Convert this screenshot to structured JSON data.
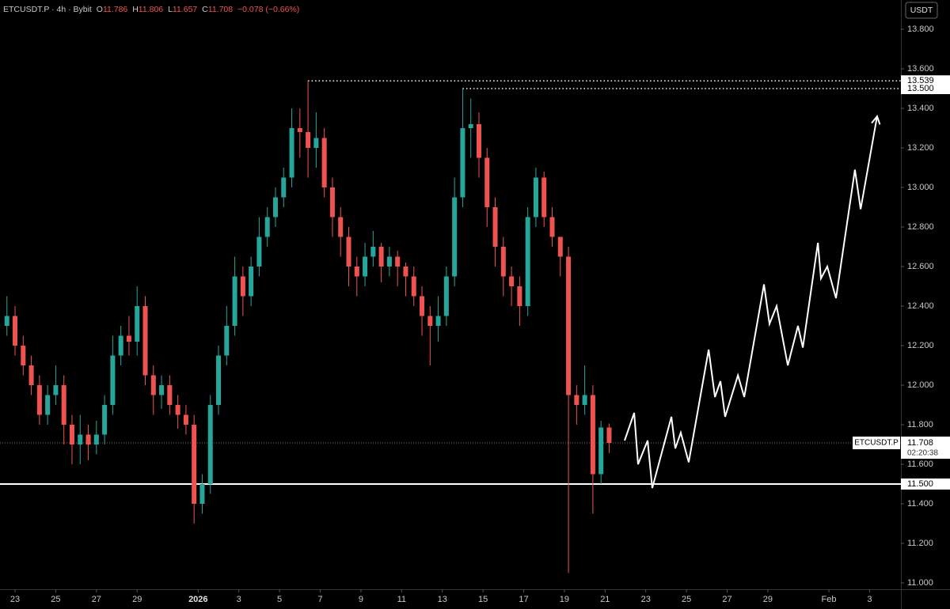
{
  "chart_data": {
    "type": "candlestick",
    "symbol_line": "ETCUSDT.P · 4h · Bybit",
    "ohlc_letters": [
      "O",
      "H",
      "L",
      "C"
    ],
    "change_label": "−0.078 (−0.66%)",
    "currency": "USDT",
    "symbol_tag": "ETCUSDT.P",
    "countdown": "02:20:38",
    "up_color": "#26a69a",
    "down_color": "#ef5350",
    "x": [
      -0.4,
      0,
      0.4,
      0.8,
      1.2,
      1.6,
      2,
      2.4,
      2.8,
      3.2,
      3.6,
      4,
      4.4,
      4.8,
      5.2,
      5.6,
      6,
      6.4,
      6.8,
      7.2,
      7.6,
      8,
      8.4,
      8.8,
      9.2,
      9.6,
      10,
      10.4,
      10.8,
      11.2,
      11.6,
      12,
      12.4,
      12.8,
      13.2,
      13.6,
      14,
      14.4,
      14.8,
      15.2,
      15.6,
      16,
      16.4,
      16.8,
      17.2,
      17.6,
      18,
      18.4,
      18.8,
      19.2,
      19.6,
      20,
      20.4,
      20.8,
      21.2,
      21.6,
      22,
      22.4,
      22.8,
      23.2,
      23.6,
      24,
      24.4,
      24.8,
      25.2,
      25.6,
      26,
      26.4,
      26.8,
      27.2,
      27.6,
      28,
      28.4,
      28.8,
      29.2
    ],
    "open": [
      12.3,
      12.35,
      12.2,
      12.1,
      12.0,
      11.85,
      11.95,
      12.0,
      11.8,
      11.7,
      11.75,
      11.7,
      11.75,
      11.9,
      12.15,
      12.25,
      12.22,
      12.4,
      12.05,
      11.95,
      12.0,
      11.9,
      11.85,
      11.8,
      11.4,
      11.5,
      11.9,
      12.15,
      12.3,
      12.55,
      12.45,
      12.6,
      12.75,
      12.85,
      12.95,
      13.05,
      13.3,
      13.28,
      13.2,
      13.25,
      13.0,
      12.85,
      12.75,
      12.6,
      12.55,
      12.65,
      12.7,
      12.6,
      12.65,
      12.6,
      12.55,
      12.45,
      12.35,
      12.3,
      12.35,
      12.55,
      12.95,
      13.3,
      13.32,
      13.15,
      12.9,
      12.7,
      12.55,
      12.5,
      12.4,
      12.85,
      13.05,
      12.85,
      12.75,
      12.65,
      11.95,
      11.9,
      11.95,
      11.55,
      11.786
    ],
    "high": [
      12.45,
      12.4,
      12.25,
      12.15,
      12.05,
      12.0,
      12.1,
      12.05,
      11.85,
      11.85,
      11.8,
      11.82,
      11.95,
      12.25,
      12.3,
      12.35,
      12.5,
      12.45,
      12.1,
      12.05,
      12.05,
      11.95,
      11.9,
      11.85,
      11.55,
      11.95,
      12.2,
      12.4,
      12.65,
      12.6,
      12.65,
      12.85,
      12.9,
      13.0,
      13.1,
      13.4,
      13.4,
      13.539,
      13.38,
      13.3,
      13.05,
      12.9,
      12.8,
      12.65,
      12.72,
      12.78,
      12.72,
      12.7,
      12.68,
      12.62,
      12.6,
      12.5,
      12.4,
      12.45,
      12.6,
      13.05,
      13.5,
      13.45,
      13.38,
      13.2,
      12.95,
      12.75,
      12.6,
      12.55,
      12.9,
      13.1,
      13.08,
      12.9,
      12.75,
      12.7,
      12.0,
      12.1,
      12.0,
      11.82,
      11.806
    ],
    "low": [
      12.25,
      12.15,
      12.05,
      11.95,
      11.8,
      11.8,
      11.9,
      11.7,
      11.6,
      11.6,
      11.62,
      11.65,
      11.7,
      11.85,
      12.1,
      12.15,
      12.15,
      12.0,
      11.85,
      11.88,
      11.85,
      11.78,
      11.75,
      11.3,
      11.35,
      11.45,
      11.85,
      12.1,
      12.25,
      12.35,
      12.4,
      12.55,
      12.7,
      12.8,
      12.9,
      13.0,
      13.15,
      13.05,
      13.1,
      12.95,
      12.75,
      12.65,
      12.5,
      12.45,
      12.5,
      12.6,
      12.52,
      12.55,
      12.5,
      12.45,
      12.4,
      12.25,
      12.1,
      12.22,
      12.3,
      12.5,
      12.9,
      13.15,
      13.05,
      12.8,
      12.6,
      12.45,
      12.4,
      12.3,
      12.35,
      12.8,
      12.8,
      12.7,
      12.55,
      11.05,
      11.8,
      11.85,
      11.35,
      11.5,
      11.657
    ],
    "close": [
      12.35,
      12.2,
      12.1,
      12.0,
      11.85,
      11.95,
      12.0,
      11.8,
      11.7,
      11.75,
      11.7,
      11.75,
      11.9,
      12.15,
      12.25,
      12.22,
      12.4,
      12.05,
      11.95,
      12.0,
      11.9,
      11.85,
      11.8,
      11.4,
      11.5,
      11.9,
      12.15,
      12.3,
      12.55,
      12.45,
      12.6,
      12.75,
      12.85,
      12.95,
      13.05,
      13.3,
      13.28,
      13.2,
      13.25,
      13.0,
      12.85,
      12.75,
      12.6,
      12.55,
      12.65,
      12.7,
      12.6,
      12.65,
      12.6,
      12.55,
      12.45,
      12.35,
      12.3,
      12.35,
      12.55,
      12.95,
      13.3,
      13.32,
      13.15,
      12.9,
      12.7,
      12.55,
      12.5,
      12.4,
      12.85,
      13.05,
      12.85,
      12.75,
      12.65,
      11.95,
      11.9,
      11.95,
      11.55,
      11.786,
      11.708
    ],
    "projection": {
      "color": "#ffffff",
      "x": [
        29.96,
        30.43,
        30.62,
        31.09,
        31.32,
        32.26,
        32.45,
        32.72,
        33.11,
        34.09,
        34.4,
        34.67,
        34.9,
        35.53,
        35.84,
        36.81,
        37.08,
        37.43,
        37.98,
        38.48,
        38.72,
        39.46,
        39.61,
        39.92,
        40.35,
        41.28,
        41.56,
        42.37
      ],
      "y": [
        11.72,
        11.86,
        11.6,
        11.72,
        11.48,
        11.84,
        11.68,
        11.76,
        11.61,
        12.18,
        11.94,
        12.02,
        11.84,
        12.05,
        11.94,
        12.51,
        12.31,
        12.4,
        12.1,
        12.3,
        12.19,
        12.72,
        12.54,
        12.6,
        12.44,
        13.09,
        12.89,
        13.36
      ]
    },
    "levels": [
      {
        "value": 13.539,
        "style": "dotted",
        "from": 14.4
      },
      {
        "value": 13.5,
        "label": "13.500",
        "style": "dotted",
        "from": 22.0
      },
      {
        "value": 11.5,
        "label": "11.500",
        "style": "solid"
      }
    ],
    "xlim": [
      -0.74,
      43.54
    ],
    "ylim": [
      10.968,
      13.948
    ],
    "xticks": [
      {
        "value": 0,
        "label": "23"
      },
      {
        "value": 2,
        "label": "25"
      },
      {
        "value": 4,
        "label": "27"
      },
      {
        "value": 6,
        "label": "29"
      },
      {
        "value": 9,
        "label": "2026"
      },
      {
        "value": 11,
        "label": "3"
      },
      {
        "value": 13,
        "label": "5"
      },
      {
        "value": 15,
        "label": "7"
      },
      {
        "value": 17,
        "label": "9"
      },
      {
        "value": 19,
        "label": "11"
      },
      {
        "value": 21,
        "label": "13"
      },
      {
        "value": 23,
        "label": "15"
      },
      {
        "value": 25,
        "label": "17"
      },
      {
        "value": 27,
        "label": "19"
      },
      {
        "value": 29,
        "label": "21"
      },
      {
        "value": 31,
        "label": "23"
      },
      {
        "value": 33,
        "label": "25"
      },
      {
        "value": 35,
        "label": "27"
      },
      {
        "value": 37,
        "label": "29"
      },
      {
        "value": 40,
        "label": "Feb"
      },
      {
        "value": 42,
        "label": "3"
      }
    ],
    "yticks": [
      {
        "value": 13.8,
        "label": "13.800"
      },
      {
        "value": 13.6,
        "label": "13.600"
      },
      {
        "value": 13.4,
        "label": "13.400"
      },
      {
        "value": 13.2,
        "label": "13.200"
      },
      {
        "value": 13.0,
        "label": "13.000"
      },
      {
        "value": 12.8,
        "label": "12.800"
      },
      {
        "value": 12.6,
        "label": "12.600"
      },
      {
        "value": 12.4,
        "label": "12.400"
      },
      {
        "value": 12.2,
        "label": "12.200"
      },
      {
        "value": 12.0,
        "label": "12.000"
      },
      {
        "value": 11.8,
        "label": "11.800"
      },
      {
        "value": 11.6,
        "label": "11.600"
      },
      {
        "value": 11.4,
        "label": "11.400"
      },
      {
        "value": 11.2,
        "label": "11.200"
      },
      {
        "value": 11.0,
        "label": "11.000"
      }
    ]
  }
}
